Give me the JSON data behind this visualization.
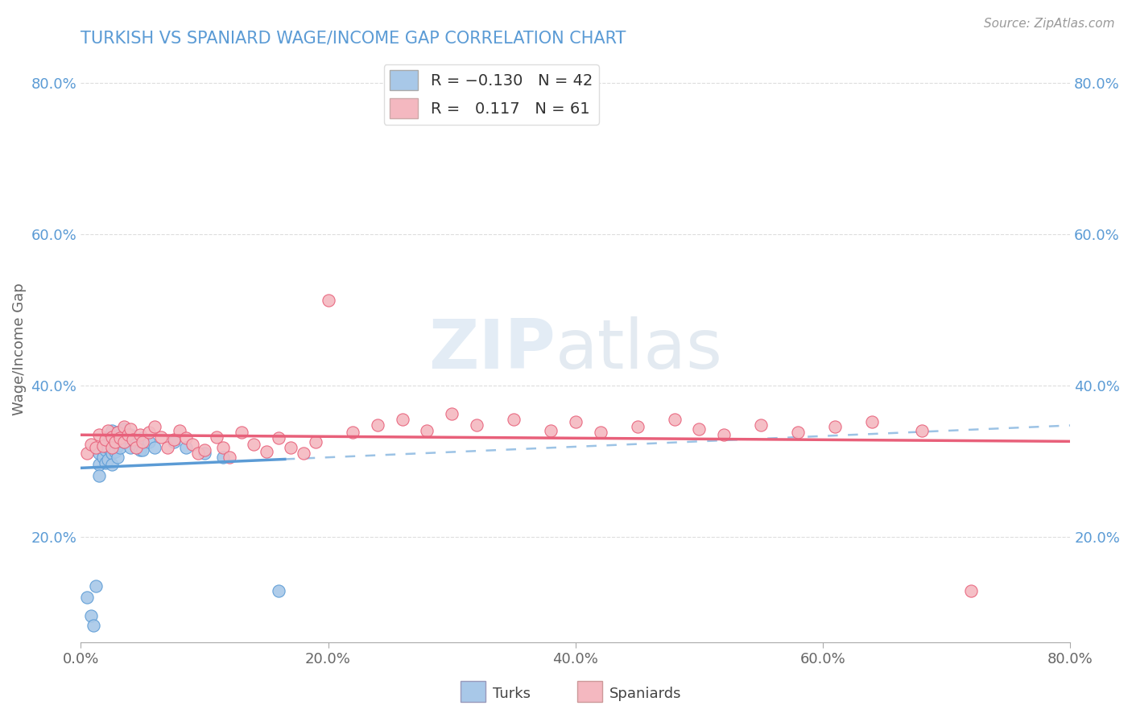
{
  "title": "TURKISH VS SPANIARD WAGE/INCOME GAP CORRELATION CHART",
  "source": "Source: ZipAtlas.com",
  "ylabel": "Wage/Income Gap",
  "xmin": 0.0,
  "xmax": 0.8,
  "ymin": 0.06,
  "ymax": 0.835,
  "xtick_labels": [
    "0.0%",
    "20.0%",
    "40.0%",
    "60.0%",
    "80.0%"
  ],
  "xtick_vals": [
    0.0,
    0.2,
    0.4,
    0.6,
    0.8
  ],
  "ytick_labels": [
    "20.0%",
    "40.0%",
    "60.0%",
    "80.0%"
  ],
  "ytick_vals": [
    0.2,
    0.4,
    0.6,
    0.8
  ],
  "turks_color": "#A8C8E8",
  "spaniards_color": "#F4B8C0",
  "turks_line_color": "#5B9BD5",
  "spaniards_line_color": "#E8607A",
  "watermark_zip": "ZIP",
  "watermark_atlas": "atlas",
  "background_color": "#FFFFFF",
  "turks_x": [
    0.005,
    0.008,
    0.01,
    0.012,
    0.015,
    0.015,
    0.015,
    0.018,
    0.018,
    0.02,
    0.02,
    0.022,
    0.022,
    0.022,
    0.025,
    0.025,
    0.025,
    0.025,
    0.028,
    0.028,
    0.03,
    0.03,
    0.03,
    0.032,
    0.032,
    0.035,
    0.035,
    0.038,
    0.04,
    0.04,
    0.042,
    0.045,
    0.048,
    0.05,
    0.05,
    0.055,
    0.06,
    0.075,
    0.085,
    0.1,
    0.115,
    0.16
  ],
  "turks_y": [
    0.12,
    0.095,
    0.082,
    0.135,
    0.31,
    0.295,
    0.28,
    0.32,
    0.305,
    0.315,
    0.298,
    0.332,
    0.318,
    0.302,
    0.34,
    0.325,
    0.31,
    0.295,
    0.328,
    0.312,
    0.338,
    0.32,
    0.305,
    0.335,
    0.318,
    0.342,
    0.325,
    0.33,
    0.335,
    0.318,
    0.328,
    0.322,
    0.315,
    0.33,
    0.315,
    0.325,
    0.318,
    0.325,
    0.318,
    0.31,
    0.305,
    0.128
  ],
  "spaniards_x": [
    0.005,
    0.008,
    0.012,
    0.015,
    0.018,
    0.02,
    0.022,
    0.025,
    0.025,
    0.028,
    0.03,
    0.032,
    0.035,
    0.035,
    0.038,
    0.04,
    0.042,
    0.045,
    0.048,
    0.05,
    0.055,
    0.06,
    0.065,
    0.07,
    0.075,
    0.08,
    0.085,
    0.09,
    0.095,
    0.1,
    0.11,
    0.115,
    0.12,
    0.13,
    0.14,
    0.15,
    0.16,
    0.17,
    0.18,
    0.19,
    0.2,
    0.22,
    0.24,
    0.26,
    0.28,
    0.3,
    0.32,
    0.35,
    0.38,
    0.4,
    0.42,
    0.45,
    0.48,
    0.5,
    0.52,
    0.55,
    0.58,
    0.61,
    0.64,
    0.68,
    0.72
  ],
  "spaniards_y": [
    0.31,
    0.322,
    0.318,
    0.335,
    0.32,
    0.328,
    0.34,
    0.332,
    0.318,
    0.325,
    0.338,
    0.33,
    0.345,
    0.325,
    0.335,
    0.342,
    0.328,
    0.318,
    0.335,
    0.325,
    0.338,
    0.345,
    0.332,
    0.318,
    0.328,
    0.34,
    0.33,
    0.322,
    0.31,
    0.315,
    0.332,
    0.318,
    0.305,
    0.338,
    0.322,
    0.312,
    0.33,
    0.318,
    0.31,
    0.325,
    0.512,
    0.338,
    0.348,
    0.355,
    0.34,
    0.362,
    0.348,
    0.355,
    0.34,
    0.352,
    0.338,
    0.345,
    0.355,
    0.342,
    0.335,
    0.348,
    0.338,
    0.345,
    0.352,
    0.34,
    0.128
  ]
}
